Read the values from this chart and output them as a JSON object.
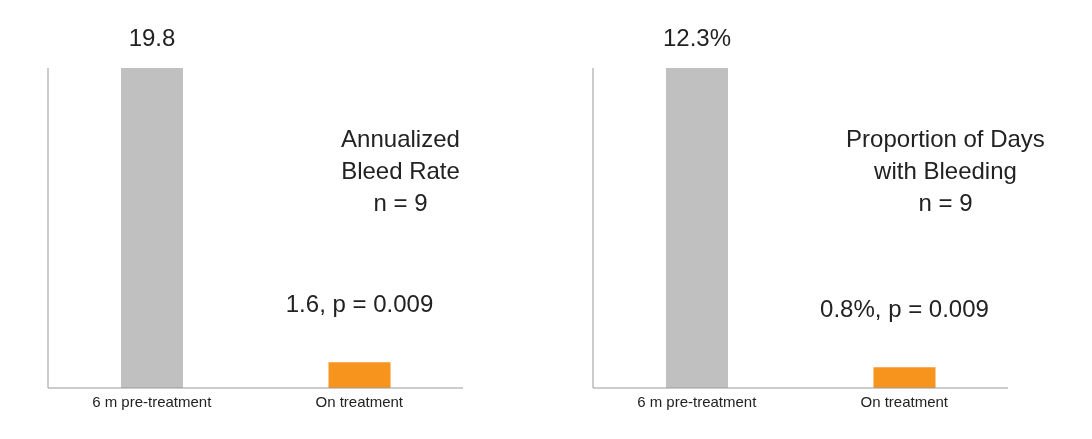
{
  "chart_data": [
    {
      "type": "bar",
      "categories": [
        "6 m pre-treatment",
        "On treatment"
      ],
      "values": [
        19.8,
        1.6
      ],
      "colors": [
        "#c0c0c0",
        "#f7941d"
      ],
      "value_labels": [
        "19.8",
        "1.6, p = 0.009"
      ],
      "annotations": [
        "Annualized\nBleed Rate\nn = 9"
      ]
    },
    {
      "type": "bar",
      "categories": [
        "6 m pre-treatment",
        "On treatment"
      ],
      "values": [
        12.3,
        0.8
      ],
      "colors": [
        "#c0c0c0",
        "#f7941d"
      ],
      "value_labels": [
        "12.3%",
        "0.8%, p = 0.009"
      ],
      "annotations": [
        "Proportion of Days\nwith Bleeding\nn = 9"
      ]
    }
  ]
}
